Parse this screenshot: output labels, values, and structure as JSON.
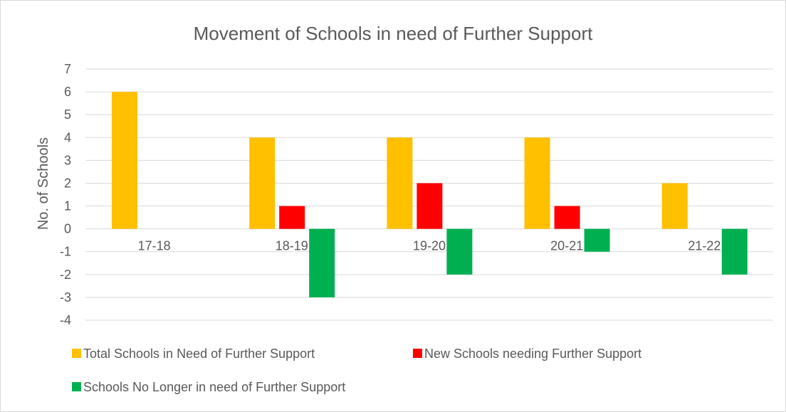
{
  "chart_data": {
    "type": "bar",
    "title": "Movement of Schools in need of Further Support",
    "xlabel": "",
    "ylabel": "No. of Schools",
    "categories": [
      "17-18",
      "18-19",
      "19-20",
      "20-21",
      "21-22"
    ],
    "series": [
      {
        "name": "Total Schools in Need of Further Support",
        "color": "#FFC000",
        "values": [
          6,
          4,
          4,
          4,
          2
        ]
      },
      {
        "name": "New Schools needing Further Support",
        "color": "#FF0000",
        "values": [
          0,
          1,
          2,
          1,
          0
        ]
      },
      {
        "name": "Schools No Longer in need of Further Support",
        "color": "#00B050",
        "values": [
          0,
          -3,
          -2,
          -1,
          -2
        ]
      }
    ],
    "ylim": [
      -4,
      7
    ],
    "yticks": [
      "7",
      "6",
      "5",
      "4",
      "3",
      "2",
      "1",
      "0",
      "-1",
      "-2",
      "-3",
      "-4"
    ],
    "grid": true,
    "legend_position": "bottom",
    "colors": {
      "gridline": "#d9d9d9",
      "text": "#595959"
    }
  }
}
